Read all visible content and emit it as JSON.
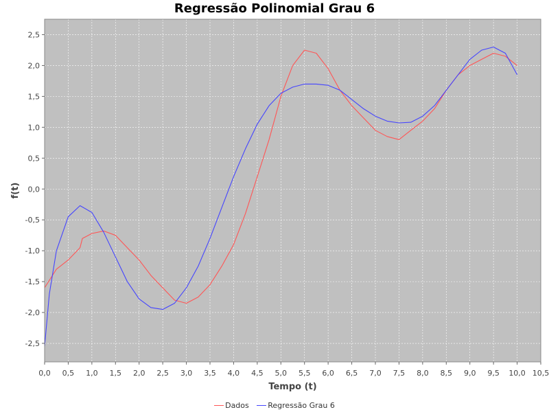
{
  "chart_data": {
    "type": "line",
    "title": "Regressão Polinomial Grau 6",
    "xlabel": "Tempo (t)",
    "ylabel": "f(t)",
    "xlim": [
      0,
      10.5
    ],
    "ylim": [
      -2.8,
      2.75
    ],
    "x_ticks": [
      "0,0",
      "0,5",
      "1,0",
      "1,5",
      "2,0",
      "2,5",
      "3,0",
      "3,5",
      "4,0",
      "4,5",
      "5,0",
      "5,5",
      "6,0",
      "6,5",
      "7,0",
      "7,5",
      "8,0",
      "8,5",
      "9,0",
      "9,5",
      "10,0",
      "10,5"
    ],
    "y_ticks": [
      "-2,5",
      "-2,0",
      "-1,5",
      "-1,0",
      "-0,5",
      "0,0",
      "0,5",
      "1,0",
      "1,5",
      "2,0",
      "2,5"
    ],
    "grid": true,
    "legend_position": "bottom",
    "background_color": "#c0c0c0",
    "series": [
      {
        "name": "Dados",
        "color": "#ff5555",
        "x": [
          0.0,
          0.25,
          0.5,
          0.75,
          0.8,
          1.0,
          1.25,
          1.5,
          1.75,
          2.0,
          2.25,
          2.5,
          2.75,
          3.0,
          3.25,
          3.5,
          3.75,
          4.0,
          4.25,
          4.5,
          4.75,
          5.0,
          5.25,
          5.5,
          5.75,
          6.0,
          6.25,
          6.5,
          6.75,
          7.0,
          7.25,
          7.5,
          7.75,
          8.0,
          8.25,
          8.5,
          8.75,
          9.0,
          9.25,
          9.5,
          9.75,
          10.0
        ],
        "y": [
          -1.6,
          -1.3,
          -1.15,
          -0.95,
          -0.8,
          -0.72,
          -0.68,
          -0.75,
          -0.95,
          -1.15,
          -1.4,
          -1.6,
          -1.8,
          -1.85,
          -1.75,
          -1.55,
          -1.25,
          -0.9,
          -0.4,
          0.2,
          0.8,
          1.5,
          2.0,
          2.25,
          2.2,
          1.95,
          1.6,
          1.35,
          1.15,
          0.95,
          0.85,
          0.8,
          0.95,
          1.1,
          1.3,
          1.6,
          1.85,
          2.0,
          2.1,
          2.2,
          2.15,
          2.0
        ]
      },
      {
        "name": "Regressão Grau 6",
        "color": "#4444ff",
        "x": [
          0.0,
          0.1,
          0.25,
          0.5,
          0.75,
          1.0,
          1.25,
          1.5,
          1.75,
          2.0,
          2.25,
          2.5,
          2.75,
          3.0,
          3.25,
          3.5,
          3.75,
          4.0,
          4.25,
          4.5,
          4.75,
          5.0,
          5.25,
          5.5,
          5.75,
          6.0,
          6.25,
          6.5,
          6.75,
          7.0,
          7.25,
          7.5,
          7.75,
          8.0,
          8.25,
          8.5,
          8.75,
          9.0,
          9.25,
          9.5,
          9.75,
          10.0
        ],
        "y": [
          -2.55,
          -1.7,
          -1.0,
          -0.45,
          -0.27,
          -0.38,
          -0.7,
          -1.1,
          -1.5,
          -1.78,
          -1.92,
          -1.95,
          -1.85,
          -1.6,
          -1.25,
          -0.8,
          -0.3,
          0.2,
          0.65,
          1.05,
          1.35,
          1.55,
          1.65,
          1.7,
          1.7,
          1.68,
          1.6,
          1.45,
          1.3,
          1.18,
          1.1,
          1.07,
          1.08,
          1.18,
          1.35,
          1.6,
          1.85,
          2.1,
          2.25,
          2.3,
          2.2,
          1.85
        ]
      }
    ]
  }
}
